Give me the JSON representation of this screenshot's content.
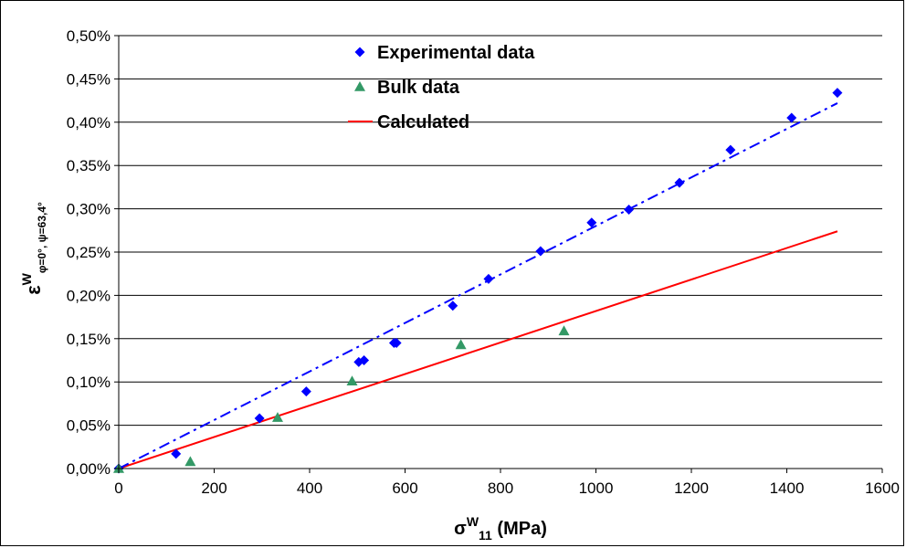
{
  "chart_data": {
    "type": "scatter",
    "x_axis": {
      "symbol": "σ",
      "superscript": "W",
      "subscript": "11",
      "unit": " (MPa)",
      "ticks": [
        0,
        200,
        400,
        600,
        800,
        1000,
        1200,
        1400,
        1600
      ],
      "tick_labels": [
        "0",
        "200",
        "400",
        "600",
        "800",
        "1000",
        "1200",
        "1400",
        "1600"
      ],
      "range": [
        0,
        1600
      ]
    },
    "y_axis": {
      "symbol": "ε",
      "superscript": "W",
      "subscript": "φ=0°, ψ=63,4°",
      "ticks": [
        0,
        0.05,
        0.1,
        0.15,
        0.2,
        0.25,
        0.3,
        0.35,
        0.4,
        0.45,
        0.5
      ],
      "tick_labels": [
        "0,00%",
        "0,05%",
        "0,10%",
        "0,15%",
        "0,20%",
        "0,25%",
        "0,30%",
        "0,35%",
        "0,40%",
        "0,45%",
        "0,50%"
      ],
      "range": [
        0,
        0.5
      ],
      "unit": "percent"
    },
    "grid": "horizontal",
    "legend_position": "top-center",
    "series": [
      {
        "name": "Experimental data",
        "kind": "points",
        "marker": "diamond",
        "color": "#0000ff",
        "points": [
          [
            0,
            0.0
          ],
          [
            120,
            0.017
          ],
          [
            295,
            0.058
          ],
          [
            393,
            0.089
          ],
          [
            503,
            0.123
          ],
          [
            514,
            0.125
          ],
          [
            577,
            0.145
          ],
          [
            582,
            0.145
          ],
          [
            700,
            0.188
          ],
          [
            775,
            0.219
          ],
          [
            884,
            0.251
          ],
          [
            991,
            0.284
          ],
          [
            1069,
            0.299
          ],
          [
            1175,
            0.33
          ],
          [
            1282,
            0.368
          ],
          [
            1410,
            0.405
          ],
          [
            1506,
            0.434
          ]
        ]
      },
      {
        "name": "Bulk data",
        "kind": "points",
        "marker": "triangle",
        "color": "#339966",
        "points": [
          [
            0,
            0.0
          ],
          [
            150,
            0.008
          ],
          [
            333,
            0.059
          ],
          [
            489,
            0.101
          ],
          [
            717,
            0.143
          ],
          [
            933,
            0.159
          ]
        ]
      },
      {
        "name": "Calculated",
        "kind": "line",
        "style": "solid",
        "color": "#ff0000",
        "points": [
          [
            0,
            0.0
          ],
          [
            1506,
            0.274
          ]
        ]
      },
      {
        "kind": "line",
        "style": "dash-dot",
        "color": "#0000ff",
        "points": [
          [
            0,
            0.0
          ],
          [
            1506,
            0.422
          ]
        ]
      }
    ]
  }
}
